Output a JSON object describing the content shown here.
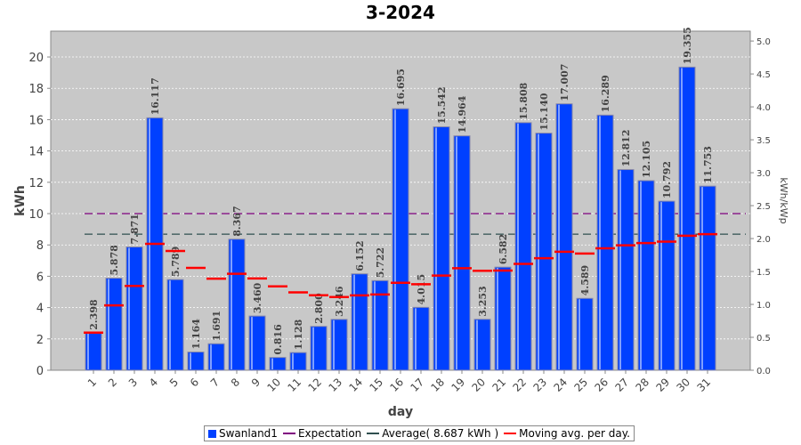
{
  "chart_data": {
    "type": "bar",
    "title": "3-2024",
    "xlabel": "day",
    "ylabel": "kWh",
    "y2label": "kWh/kWp",
    "ylim": [
      0,
      21.65
    ],
    "y2lim": [
      0,
      5.15
    ],
    "yticks": [
      0,
      2,
      4,
      6,
      8,
      10,
      12,
      14,
      16,
      18,
      20
    ],
    "y2ticks": [
      "0.0",
      "0.5",
      "1.0",
      "1.5",
      "2.0",
      "2.5",
      "3.0",
      "3.5",
      "4.0",
      "4.5",
      "5.0"
    ],
    "grid": true,
    "legend_position": "bottom",
    "categories": [
      "1",
      "2",
      "3",
      "4",
      "5",
      "6",
      "7",
      "8",
      "9",
      "10",
      "11",
      "12",
      "13",
      "14",
      "15",
      "16",
      "17",
      "18",
      "19",
      "20",
      "21",
      "22",
      "23",
      "24",
      "25",
      "26",
      "27",
      "28",
      "29",
      "30",
      "31"
    ],
    "series": [
      {
        "name": "Swanland1",
        "type": "bar",
        "color": "#0040ff",
        "values": [
          2.398,
          5.878,
          7.871,
          16.117,
          5.789,
          1.164,
          1.691,
          8.367,
          3.46,
          0.816,
          1.128,
          2.8,
          3.246,
          6.152,
          5.722,
          16.695,
          4.015,
          15.542,
          14.964,
          3.253,
          6.582,
          15.808,
          15.14,
          17.007,
          4.589,
          16.289,
          12.812,
          12.105,
          10.792,
          19.355,
          11.753
        ],
        "labels": [
          "2.398",
          "5.878",
          "7.871",
          "16.117",
          "5.789",
          "1.164",
          "1.691",
          "8.367",
          "3.460",
          "0.816",
          "1.128",
          "2.800",
          "3.246",
          "6.152",
          "5.722",
          "16.695",
          "4.015",
          "15.542",
          "14.964",
          "3.253",
          "6.582",
          "15.808",
          "15.140",
          "17.007",
          "4.589",
          "16.289",
          "12.812",
          "12.105",
          "10.792",
          "19.355",
          "11.753"
        ]
      },
      {
        "name": "Expectation",
        "type": "hline",
        "color": "#800080",
        "value": 10
      },
      {
        "name": "Average( 8.687 kWh )",
        "type": "hline",
        "color": "#2f4f4f",
        "value": 8.687
      },
      {
        "name": "Moving avg. per day.",
        "type": "step",
        "color": "#ff0000",
        "values": [
          2.398,
          4.138,
          5.382,
          8.066,
          7.611,
          6.536,
          5.844,
          6.159,
          5.859,
          5.355,
          4.971,
          4.79,
          4.671,
          4.777,
          4.84,
          5.581,
          5.489,
          6.047,
          6.517,
          6.353,
          6.364,
          6.794,
          7.156,
          7.567,
          7.448,
          7.788,
          7.974,
          8.121,
          8.214,
          8.585,
          8.687
        ]
      }
    ]
  }
}
